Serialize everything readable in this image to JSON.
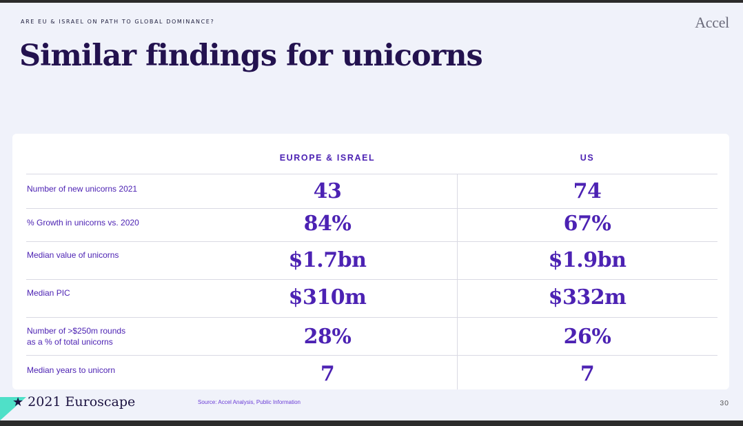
{
  "header": {
    "kicker": "ARE EU & ISRAEL ON PATH TO GLOBAL DOMINANCE?",
    "title": "Similar findings for unicorns",
    "brand": "Accel"
  },
  "table": {
    "columns": [
      "EUROPE & ISRAEL",
      "US"
    ],
    "rows": [
      {
        "label": "Number of new unicorns 2021",
        "eu": "43",
        "us": "74"
      },
      {
        "label": "% Growth in unicorns vs. 2020",
        "eu": "84%",
        "us": "67%"
      },
      {
        "label": "Median value of unicorns",
        "eu": "$1.7bn",
        "us": "$1.9bn"
      },
      {
        "label": "Median PIC",
        "eu": "$310m",
        "us": "$332m"
      },
      {
        "label": "Number of >$250m rounds\nas a % of total unicorns",
        "eu": "28%",
        "us": "26%"
      },
      {
        "label": "Median years to unicorn",
        "eu": "7",
        "us": "7"
      }
    ]
  },
  "footer": {
    "logo_star": "★",
    "logo_text": "2021 Euroscape",
    "source": "Source: Accel Analysis, Public Information",
    "page_number": "30"
  },
  "colors": {
    "accent": "#4c22b3",
    "title": "#23124f",
    "teal": "#4fe0c8",
    "background": "#f0f2fa"
  }
}
